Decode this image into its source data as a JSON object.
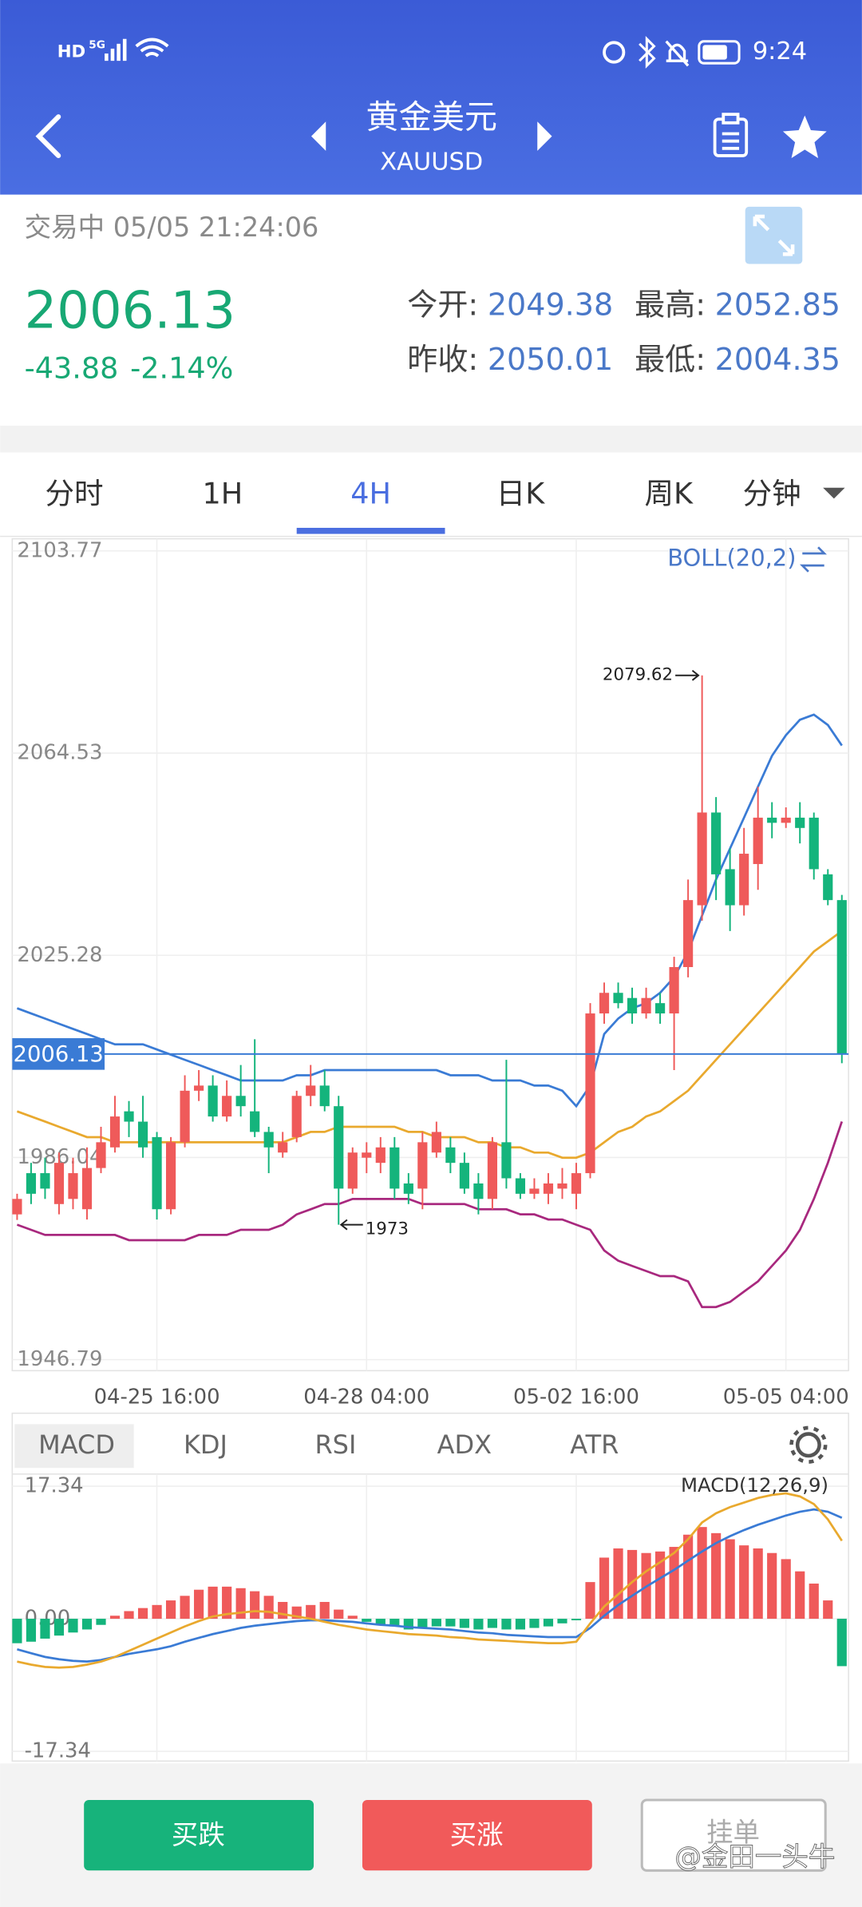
{
  "status_bar": {
    "left": [
      "HD",
      "5G"
    ],
    "time": "9:24"
  },
  "header": {
    "title": "黄金美元",
    "subtitle": "XAUUSD"
  },
  "quote": {
    "status": "交易中 05/05 21:24:06",
    "price": "2006.13",
    "change": "-43.88",
    "change_pct": "-2.14%",
    "fields": [
      {
        "label": "今开:",
        "value": "2049.38"
      },
      {
        "label": "最高:",
        "value": "2052.85"
      },
      {
        "label": "昨收:",
        "value": "2050.01"
      },
      {
        "label": "最低:",
        "value": "2004.35"
      }
    ]
  },
  "tabs": [
    "分时",
    "1H",
    "4H",
    "日K",
    "周K",
    "分钟"
  ],
  "indicator_tabs": [
    "MACD",
    "KDJ",
    "RSI",
    "ADX",
    "ATR"
  ],
  "chart_data": [
    {
      "type": "candlestick",
      "indicator": "BOLL(20,2)",
      "categories": [
        null,
        null,
        null,
        null,
        null,
        null,
        null,
        null,
        null,
        null,
        "04-25 16:00",
        null,
        null,
        null,
        null,
        null,
        null,
        null,
        null,
        null,
        null,
        null,
        null,
        null,
        null,
        "04-28 04:00",
        null,
        null,
        null,
        null,
        null,
        null,
        null,
        null,
        null,
        null,
        null,
        null,
        null,
        null,
        "05-02 16:00",
        null,
        null,
        null,
        null,
        null,
        null,
        null,
        null,
        null,
        null,
        null,
        null,
        null,
        null,
        "05-05 04:00",
        null,
        null,
        null,
        null
      ],
      "open": [
        1975,
        1983,
        1983,
        1977,
        1978,
        1976,
        1984,
        1988,
        1995,
        1993,
        1990,
        1976,
        1989,
        1999,
        2000,
        1994,
        1998,
        1995,
        1991,
        1987,
        1990,
        1998,
        2000,
        1996,
        1980,
        1986,
        1985,
        1988,
        1981,
        1980,
        1987,
        1988,
        1985,
        1981,
        1978,
        1989,
        1982,
        1979,
        1979,
        1980,
        1979,
        1983,
        2014,
        2018,
        2017,
        2014,
        2016,
        2014,
        2023,
        2035,
        2053,
        2042,
        2035,
        2043,
        2052,
        2051,
        2052,
        2052,
        2041,
        2036
      ],
      "high": [
        1979,
        1985,
        1986,
        1987,
        1986,
        1988,
        1992,
        1998,
        1997,
        1998,
        1991,
        1990,
        2002,
        2003,
        2002,
        2001,
        2004,
        2009,
        1992,
        1991,
        1999,
        2004,
        2003,
        1998,
        1988,
        1989,
        1990,
        1990,
        1983,
        1991,
        1993,
        1990,
        1987,
        1983,
        1990,
        2005,
        1983,
        1982,
        1983,
        1984,
        1985,
        2016,
        2020,
        2020,
        2019,
        2019,
        2018,
        2025,
        2040,
        2079.62,
        2056,
        2046,
        2050,
        2058,
        2055,
        2054,
        2055,
        2053,
        2042,
        2037
      ],
      "low": [
        1973.92,
        1977,
        1978,
        1975,
        1976,
        1974,
        1983,
        1987,
        1990,
        1986,
        1974,
        1975,
        1988,
        1997,
        1993,
        1993,
        1994,
        1990,
        1983,
        1986,
        1989,
        1996,
        1995,
        1973,
        1979,
        1983,
        1983,
        1978,
        1977,
        1976,
        1986,
        1983,
        1979,
        1975,
        1976,
        1980,
        1978,
        1978,
        1977,
        1978,
        1976,
        1982,
        2012,
        2015,
        2012,
        2013,
        2012,
        2003,
        2021,
        2032,
        2036,
        2030,
        2033,
        2038,
        2048,
        2050,
        2047,
        2040,
        2035,
        2004.35
      ],
      "close": [
        1978,
        1979,
        1980,
        1985,
        1983,
        1984,
        1989,
        1994,
        1993,
        1988,
        1976,
        1989,
        1999,
        2000,
        1994,
        1998,
        1996,
        1991,
        1988,
        1989,
        1998,
        2000,
        1996,
        1980,
        1987,
        1987,
        1988,
        1980,
        1979,
        1989,
        1991,
        1985,
        1980,
        1978,
        1989,
        1982,
        1979,
        1980,
        1981,
        1981,
        1983,
        2014,
        2018,
        2016,
        2014,
        2017,
        2014,
        2023,
        2036,
        2053,
        2041,
        2035,
        2045,
        2052,
        2051,
        2052,
        2050,
        2042,
        2036,
        2006.13
      ],
      "up_color": "#ef5a5a",
      "down_color": "#14b47c",
      "overlays": [
        {
          "color": "#3a7bd5",
          "values": [
            2015,
            2014,
            2013,
            2012,
            2011,
            2010,
            2009,
            2008,
            2008,
            2008,
            2007,
            2006,
            2005,
            2004,
            2003,
            2002,
            2001,
            2001,
            2001,
            2001,
            2002,
            2002,
            2003,
            2003,
            2003,
            2003,
            2003,
            2003,
            2003,
            2003,
            2003,
            2002,
            2002,
            2002,
            2001,
            2001,
            2001,
            2000,
            2000,
            1999,
            1996,
            2000,
            2010,
            2013,
            2015,
            2016,
            2018,
            2021,
            2026,
            2033,
            2040,
            2046,
            2052,
            2058,
            2064,
            2068,
            2071,
            2072,
            2070,
            2066
          ]
        },
        {
          "color": "#e9a92e",
          "values": [
            1995,
            1994,
            1993,
            1992,
            1991,
            1990,
            1990,
            1989,
            1989,
            1989,
            1989,
            1989,
            1989,
            1989,
            1989,
            1989,
            1989,
            1989,
            1989,
            1989,
            1990,
            1991,
            1991,
            1992,
            1992,
            1992,
            1992,
            1992,
            1991,
            1991,
            1990,
            1990,
            1990,
            1989,
            1989,
            1988,
            1988,
            1987,
            1987,
            1986,
            1986,
            1987,
            1989,
            1991,
            1992,
            1994,
            1995,
            1997,
            1999,
            2002,
            2005,
            2008,
            2011,
            2014,
            2017,
            2020,
            2023,
            2026,
            2028,
            2030
          ]
        },
        {
          "color": "#a8287e",
          "values": [
            1973,
            1972,
            1971,
            1971,
            1971,
            1971,
            1971,
            1971,
            1970,
            1970,
            1970,
            1970,
            1970,
            1971,
            1971,
            1971,
            1972,
            1972,
            1972,
            1973,
            1975,
            1976,
            1977,
            1977,
            1978,
            1978,
            1978,
            1978,
            1978,
            1977,
            1977,
            1977,
            1977,
            1976,
            1976,
            1976,
            1975,
            1975,
            1974,
            1974,
            1973,
            1972,
            1968,
            1966,
            1965,
            1964,
            1963,
            1963,
            1962,
            1957,
            1957,
            1958,
            1960,
            1962,
            1965,
            1968,
            1972,
            1978,
            1985,
            1993
          ]
        }
      ],
      "ylim": [
        1946.79,
        2103.77
      ],
      "yticks": [
        2103.77,
        2064.53,
        2025.28,
        1986.04,
        1946.79
      ]
    },
    {
      "type": "macd",
      "title": "MACD(12,26,9)",
      "histogram": [
        -3.2,
        -3.0,
        -2.6,
        -2.2,
        -1.8,
        -1.4,
        -0.8,
        0.4,
        1.0,
        1.4,
        1.8,
        2.4,
        3.0,
        3.8,
        4.2,
        4.2,
        4.0,
        3.6,
        3.0,
        2.2,
        1.6,
        1.8,
        2.2,
        1.2,
        0.4,
        -0.4,
        -0.8,
        -1.0,
        -1.4,
        -1.2,
        -1.0,
        -1.0,
        -1.2,
        -1.4,
        -1.2,
        -1.4,
        -1.4,
        -1.2,
        -1.0,
        -0.6,
        -0.2,
        4.8,
        8.0,
        9.2,
        9.0,
        8.6,
        8.8,
        9.4,
        11.0,
        12.0,
        11.2,
        10.4,
        9.6,
        9.2,
        8.6,
        7.8,
        6.2,
        4.6,
        2.4,
        -6.2
      ],
      "up_color": "#ef5a5a",
      "down_color": "#14b47c",
      "series": [
        {
          "color": "#3a7bd5",
          "values": [
            -4.0,
            -4.5,
            -5.0,
            -5.3,
            -5.5,
            -5.6,
            -5.4,
            -5.0,
            -4.6,
            -4.3,
            -4.0,
            -3.6,
            -3.0,
            -2.5,
            -2.0,
            -1.6,
            -1.2,
            -0.9,
            -0.7,
            -0.5,
            -0.3,
            -0.2,
            -0.2,
            -0.3,
            -0.4,
            -0.6,
            -0.8,
            -0.9,
            -1.1,
            -1.2,
            -1.3,
            -1.4,
            -1.6,
            -1.8,
            -1.9,
            -2.1,
            -2.2,
            -2.3,
            -2.4,
            -2.4,
            -2.4,
            -1.2,
            0.4,
            1.8,
            3.0,
            4.2,
            5.3,
            6.4,
            7.6,
            8.8,
            9.9,
            10.8,
            11.6,
            12.3,
            12.9,
            13.5,
            14.0,
            14.3,
            14.0,
            13.2
          ]
        },
        {
          "color": "#e9a92e",
          "values": [
            -5.6,
            -6.0,
            -6.3,
            -6.4,
            -6.3,
            -6.0,
            -5.6,
            -5.0,
            -4.2,
            -3.4,
            -2.6,
            -1.8,
            -1.0,
            -0.3,
            0.3,
            0.6,
            0.8,
            1.0,
            0.9,
            0.6,
            0.3,
            0.0,
            -0.4,
            -0.8,
            -1.1,
            -1.4,
            -1.6,
            -1.8,
            -2.0,
            -2.1,
            -2.2,
            -2.4,
            -2.5,
            -2.7,
            -2.8,
            -2.9,
            -3.0,
            -3.1,
            -3.2,
            -3.2,
            -3.0,
            -0.6,
            1.6,
            3.2,
            4.8,
            6.2,
            7.4,
            8.6,
            10.4,
            12.6,
            13.8,
            14.6,
            15.2,
            15.8,
            16.2,
            16.4,
            16.0,
            15.0,
            13.0,
            10.2
          ]
        }
      ],
      "ylim": [
        -17.34,
        17.34
      ],
      "yticks": [
        17.34,
        {
          "value": 0,
          "label": "0.00"
        },
        -17.34
      ]
    }
  ],
  "buttons": [
    "买跌",
    "买涨",
    "挂单"
  ],
  "watermark": "@金田一头牛"
}
